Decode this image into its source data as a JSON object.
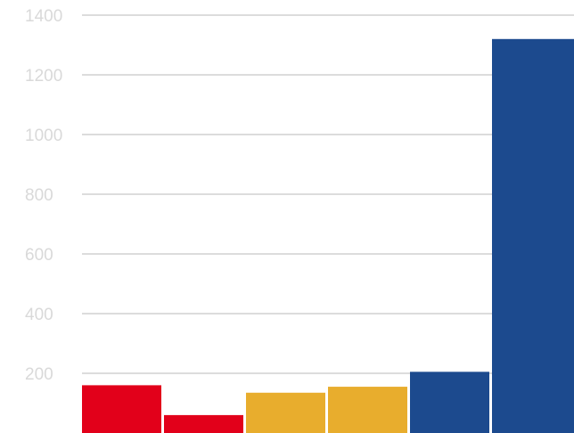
{
  "chart_data": {
    "type": "bar",
    "title": "",
    "xlabel": "",
    "ylabel": "",
    "ylim": [
      0,
      1400
    ],
    "yticks": [
      200,
      400,
      600,
      800,
      1000,
      1200,
      1400
    ],
    "ytick_labels": [
      "200",
      "400",
      "600",
      "800",
      "1000",
      "1200",
      "1400"
    ],
    "grid": true,
    "legend": "none",
    "values": [
      160,
      60,
      135,
      155,
      205,
      1320
    ],
    "bar_colors": [
      "#e2001a",
      "#e2001a",
      "#e8ad2d",
      "#e8ad2d",
      "#1c4a8e",
      "#1c4a8e"
    ]
  }
}
